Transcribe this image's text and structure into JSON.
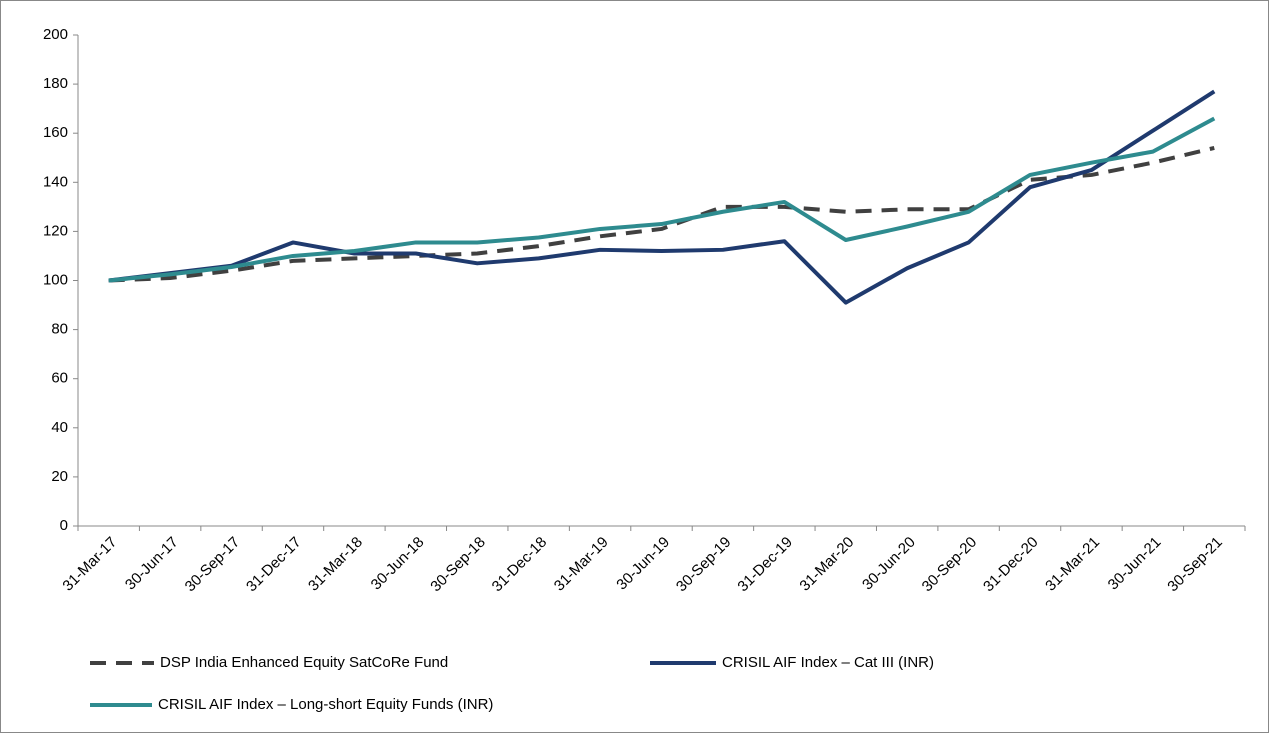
{
  "chart_data": {
    "type": "line",
    "categories": [
      "31-Mar-17",
      "30-Jun-17",
      "30-Sep-17",
      "31-Dec-17",
      "31-Mar-18",
      "30-Jun-18",
      "30-Sep-18",
      "31-Dec-18",
      "31-Mar-19",
      "30-Jun-19",
      "30-Sep-19",
      "31-Dec-19",
      "31-Mar-20",
      "30-Jun-20",
      "30-Sep-20",
      "31-Dec-20",
      "31-Mar-21",
      "30-Jun-21",
      "30-Sep-21"
    ],
    "series": [
      {
        "name": "DSP India Enhanced Equity SatCoRe Fund",
        "color": "#404040",
        "dash": true,
        "values": [
          100,
          101,
          104,
          108,
          109,
          110,
          111,
          114,
          118,
          121,
          130,
          130,
          128,
          129,
          129,
          141,
          143,
          148,
          154
        ]
      },
      {
        "name": "CRISIL AIF Index – Cat III (INR)",
        "color": "#1f3a6e",
        "dash": false,
        "values": [
          100,
          103,
          106,
          115.5,
          111,
          111,
          107,
          109,
          112.5,
          112,
          112.5,
          116,
          91,
          105,
          115.5,
          138,
          145,
          161,
          177
        ]
      },
      {
        "name": "CRISIL AIF Index – Long-short Equity Funds (INR)",
        "color": "#2e8b8f",
        "dash": false,
        "values": [
          100,
          102.5,
          105.5,
          110,
          112,
          115.5,
          115.5,
          117.5,
          121,
          123,
          128,
          132,
          116.5,
          122,
          128,
          143,
          148,
          152.5,
          166
        ]
      }
    ],
    "ylim": [
      0,
      200
    ],
    "yticks": [
      0,
      20,
      40,
      60,
      80,
      100,
      120,
      140,
      160,
      180,
      200
    ],
    "grid": false,
    "legend": "bottom"
  }
}
